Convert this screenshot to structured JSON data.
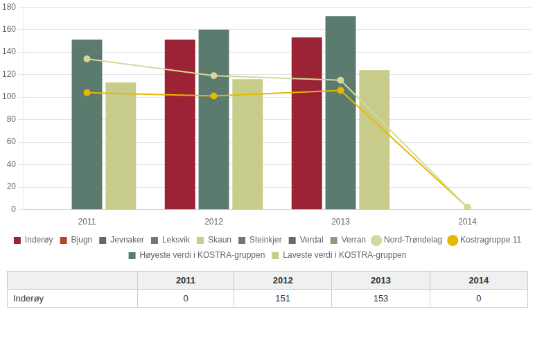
{
  "chart_data": {
    "type": "bar",
    "categories": [
      "2011",
      "2012",
      "2013",
      "2014"
    ],
    "series": [
      {
        "name": "Inderøy",
        "type": "bar",
        "color": "#9b2335",
        "values": [
          0,
          151,
          153,
          0
        ]
      },
      {
        "name": "Bjugn",
        "type": "bar",
        "color": "#b5432a",
        "values": [
          null,
          null,
          null,
          null
        ]
      },
      {
        "name": "Jevnaker",
        "type": "bar",
        "color": "#5c6e62",
        "values": [
          null,
          null,
          null,
          null
        ]
      },
      {
        "name": "Leksvik",
        "type": "bar",
        "color": "#6e7a6e",
        "values": [
          null,
          null,
          null,
          null
        ]
      },
      {
        "name": "Skaun",
        "type": "bar",
        "color": "#c8cc8a",
        "values": [
          null,
          null,
          null,
          null
        ]
      },
      {
        "name": "Steinkjer",
        "type": "bar",
        "color": "#6b7c6e",
        "values": [
          null,
          null,
          null,
          null
        ]
      },
      {
        "name": "Verdal",
        "type": "bar",
        "color": "#607060",
        "values": [
          null,
          null,
          null,
          null
        ]
      },
      {
        "name": "Verran",
        "type": "bar",
        "color": "#8a9e7e",
        "values": [
          null,
          null,
          null,
          null
        ]
      },
      {
        "name": "Nord-Trøndelag",
        "type": "line",
        "color": "#d4d89a",
        "marker": "circle",
        "values": [
          134,
          119,
          115,
          2
        ]
      },
      {
        "name": "Kostragruppe 11",
        "type": "line",
        "color": "#e6b800",
        "marker": "circle",
        "values": [
          104,
          101,
          106,
          2
        ]
      },
      {
        "name": "Høyeste verdi i KOSTRA-gruppen",
        "type": "bar",
        "color": "#5b7b6f",
        "values": [
          151,
          160,
          172,
          0
        ]
      },
      {
        "name": "Laveste verdi i KOSTRA-gruppen",
        "type": "bar",
        "color": "#c8cc8a",
        "values": [
          113,
          116,
          124,
          0
        ]
      }
    ],
    "ylim": [
      0,
      180
    ],
    "yticks": [
      0,
      20,
      40,
      60,
      80,
      100,
      120,
      140,
      160,
      180
    ],
    "grid": true,
    "legend": "bottom",
    "table": {
      "columns": [
        "2011",
        "2012",
        "2013",
        "2014"
      ],
      "rows": [
        {
          "name": "Inderøy",
          "values": [
            0,
            151,
            153,
            0
          ]
        }
      ]
    }
  }
}
